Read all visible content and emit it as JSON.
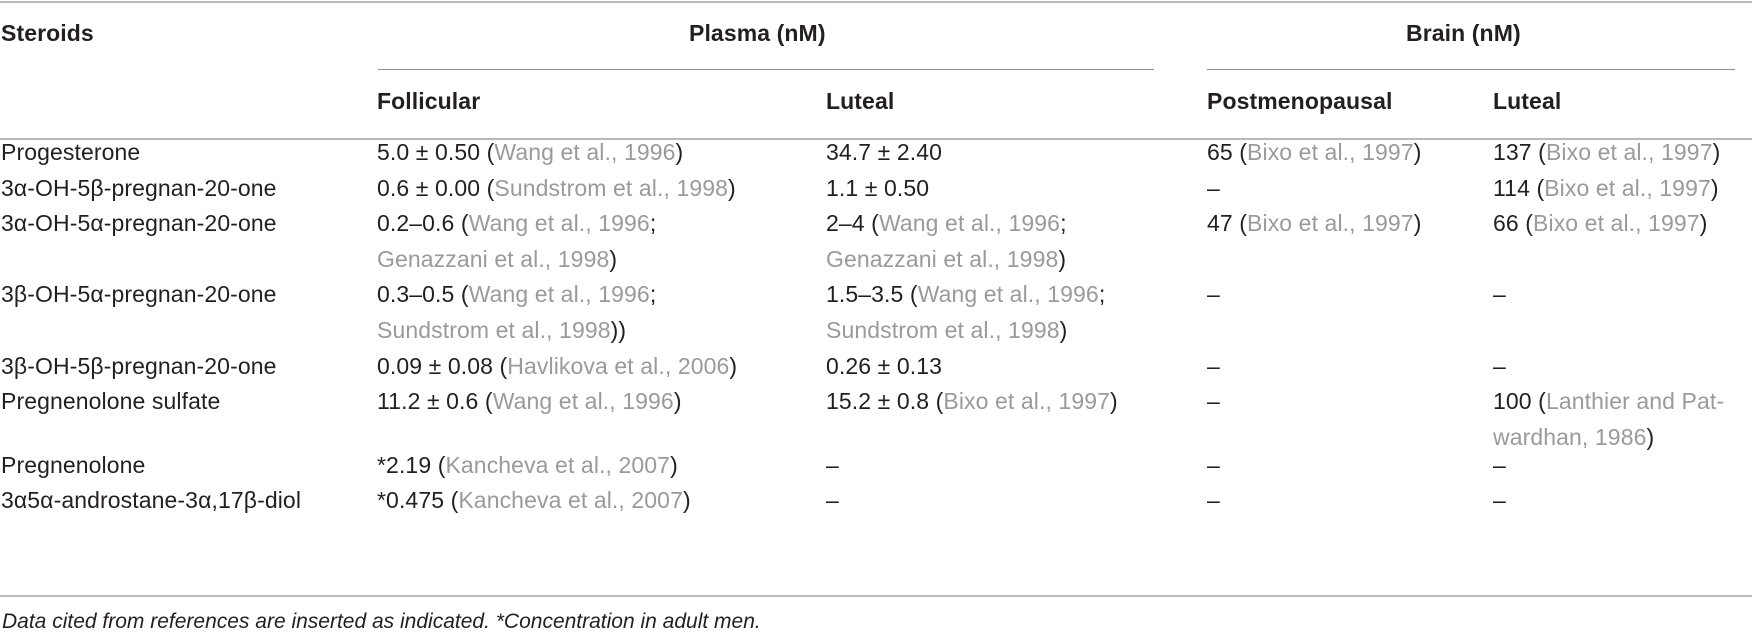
{
  "table": {
    "headers": {
      "steroids": "Steroids",
      "plasma": "Plasma (nM)",
      "brain": "Brain (nM)",
      "plasma_follicular": "Follicular",
      "plasma_luteal": "Luteal",
      "brain_postmenopausal": "Postmenopausal",
      "brain_luteal": "Luteal"
    },
    "rows": [
      {
        "steroid": "Progesterone",
        "follicular": {
          "lines": [
            [
              {
                "t": "5.0 ± 0.50 "
              },
              {
                "t": "(",
                "r": false
              },
              {
                "t": "Wang et al., 1996",
                "r": true
              },
              {
                "t": ")"
              }
            ]
          ]
        },
        "luteal": {
          "lines": [
            [
              {
                "t": "34.7 ± 2.40"
              }
            ]
          ]
        },
        "postmeno": {
          "lines": [
            [
              {
                "t": "65 ("
              },
              {
                "t": "Bixo et al., 1997",
                "r": true
              },
              {
                "t": ")"
              }
            ]
          ]
        },
        "brain_luteal": {
          "lines": [
            [
              {
                "t": "137 ("
              },
              {
                "t": "Bixo et al., 1997",
                "r": true
              },
              {
                "t": ")"
              }
            ]
          ]
        }
      },
      {
        "steroid": "3α-OH-5β-pregnan-20-one",
        "follicular": {
          "lines": [
            [
              {
                "t": "0.6 ± 0.00 ("
              },
              {
                "t": "Sundstrom et al., 1998",
                "r": true
              },
              {
                "t": ")"
              }
            ]
          ]
        },
        "luteal": {
          "lines": [
            [
              {
                "t": "1.1 ± 0.50"
              }
            ]
          ]
        },
        "postmeno": {
          "lines": [
            [
              {
                "t": "–"
              }
            ]
          ]
        },
        "brain_luteal": {
          "lines": [
            [
              {
                "t": "114 ("
              },
              {
                "t": "Bixo et al., 1997",
                "r": true
              },
              {
                "t": ")"
              }
            ]
          ]
        }
      },
      {
        "steroid": "3α-OH-5α-pregnan-20-one",
        "follicular": {
          "lines": [
            [
              {
                "t": "0.2–0.6 ("
              },
              {
                "t": "Wang et al., 1996",
                "r": true
              },
              {
                "t": ";"
              }
            ],
            [
              {
                "t": "Genazzani et al., 1998",
                "r": true
              },
              {
                "t": ")"
              }
            ]
          ]
        },
        "luteal": {
          "lines": [
            [
              {
                "t": "2–4 ("
              },
              {
                "t": "Wang et al., 1996",
                "r": true
              },
              {
                "t": ";"
              }
            ],
            [
              {
                "t": "Genazzani et al., 1998",
                "r": true
              },
              {
                "t": ")"
              }
            ]
          ]
        },
        "postmeno": {
          "lines": [
            [
              {
                "t": "47 ("
              },
              {
                "t": "Bixo et al., 1997",
                "r": true
              },
              {
                "t": ")"
              }
            ]
          ]
        },
        "brain_luteal": {
          "lines": [
            [
              {
                "t": "66 ("
              },
              {
                "t": "Bixo et al., 1997",
                "r": true
              },
              {
                "t": ")"
              }
            ]
          ]
        }
      },
      {
        "steroid": "3β-OH-5α-pregnan-20-one",
        "follicular": {
          "lines": [
            [
              {
                "t": "0.3–0.5 ("
              },
              {
                "t": "Wang et al., 1996",
                "r": true
              },
              {
                "t": ";"
              }
            ],
            [
              {
                "t": "Sundstrom et al., 1998",
                "r": true
              },
              {
                "t": "))"
              }
            ]
          ]
        },
        "luteal": {
          "lines": [
            [
              {
                "t": "1.5–3.5 ("
              },
              {
                "t": "Wang et al., 1996",
                "r": true
              },
              {
                "t": ";"
              }
            ],
            [
              {
                "t": "Sundstrom et al., 1998",
                "r": true
              },
              {
                "t": ")"
              }
            ]
          ]
        },
        "postmeno": {
          "lines": [
            [
              {
                "t": "–"
              }
            ]
          ]
        },
        "brain_luteal": {
          "lines": [
            [
              {
                "t": "–"
              }
            ]
          ]
        }
      },
      {
        "steroid": "3β-OH-5β-pregnan-20-one",
        "follicular": {
          "lines": [
            [
              {
                "t": "0.09 ± 0.08 ("
              },
              {
                "t": "Havlikova et al., 2006",
                "r": true
              },
              {
                "t": ")"
              }
            ]
          ]
        },
        "luteal": {
          "lines": [
            [
              {
                "t": "0.26 ± 0.13"
              }
            ]
          ]
        },
        "postmeno": {
          "lines": [
            [
              {
                "t": "–"
              }
            ]
          ]
        },
        "brain_luteal": {
          "lines": [
            [
              {
                "t": "–"
              }
            ]
          ]
        }
      },
      {
        "steroid": "Pregnenolone sulfate",
        "follicular": {
          "lines": [
            [
              {
                "t": "11.2 ± 0.6 ("
              },
              {
                "t": "Wang et al., 1996",
                "r": true
              },
              {
                "t": ")"
              }
            ]
          ]
        },
        "luteal": {
          "lines": [
            [
              {
                "t": "15.2 ± 0.8 ("
              },
              {
                "t": "Bixo et al., 1997",
                "r": true
              },
              {
                "t": ")"
              }
            ]
          ]
        },
        "postmeno": {
          "lines": [
            [
              {
                "t": "–"
              }
            ]
          ]
        },
        "brain_luteal": {
          "lines": [
            [
              {
                "t": "100 ("
              },
              {
                "t": "Lanthier and Pat-",
                "r": true
              }
            ],
            [
              {
                "t": "wardhan, 1986",
                "r": true
              },
              {
                "t": ")"
              }
            ]
          ]
        }
      },
      {
        "steroid": "Pregnenolone",
        "follicular": {
          "lines": [
            [
              {
                "t": "*2.19 ("
              },
              {
                "t": "Kancheva et al., 2007",
                "r": true
              },
              {
                "t": ")"
              }
            ]
          ]
        },
        "luteal": {
          "lines": [
            [
              {
                "t": "–"
              }
            ]
          ]
        },
        "postmeno": {
          "lines": [
            [
              {
                "t": "–"
              }
            ]
          ]
        },
        "brain_luteal": {
          "lines": [
            [
              {
                "t": "–"
              }
            ]
          ]
        }
      },
      {
        "steroid": "3α5α-androstane-3α,17β-diol",
        "follicular": {
          "lines": [
            [
              {
                "t": "*0.475 ("
              },
              {
                "t": "Kancheva et al., 2007",
                "r": true
              },
              {
                "t": ")"
              }
            ]
          ]
        },
        "luteal": {
          "lines": [
            [
              {
                "t": "–"
              }
            ]
          ]
        },
        "postmeno": {
          "lines": [
            [
              {
                "t": "–"
              }
            ]
          ]
        },
        "brain_luteal": {
          "lines": [
            [
              {
                "t": "–"
              }
            ]
          ]
        }
      }
    ],
    "footnote": "Data cited from references are inserted as indicated. *Concentration in adult men."
  },
  "colors": {
    "text": "#231f20",
    "reference_link": "#9a9a9a",
    "rule": "#b9b9b9"
  }
}
